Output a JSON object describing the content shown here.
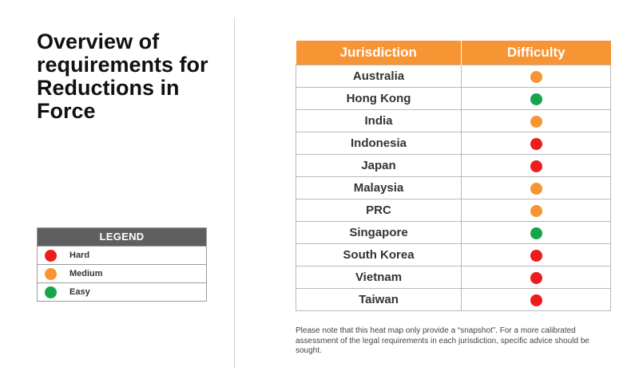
{
  "title": "Overview of requirements for Reductions in Force",
  "legend": {
    "heading": "LEGEND",
    "items": [
      {
        "label": "Hard",
        "color": "#ee1c1c"
      },
      {
        "label": "Medium",
        "color": "#f79433"
      },
      {
        "label": "Easy",
        "color": "#16a64a"
      }
    ]
  },
  "table": {
    "header_jurisdiction": "Jurisdiction",
    "header_difficulty": "Difficulty",
    "rows": [
      {
        "jurisdiction": "Australia",
        "difficulty": "Medium",
        "color": "#f79433"
      },
      {
        "jurisdiction": "Hong Kong",
        "difficulty": "Easy",
        "color": "#16a64a"
      },
      {
        "jurisdiction": "India",
        "difficulty": "Medium",
        "color": "#f79433"
      },
      {
        "jurisdiction": "Indonesia",
        "difficulty": "Hard",
        "color": "#ee1c1c"
      },
      {
        "jurisdiction": "Japan",
        "difficulty": "Hard",
        "color": "#ee1c1c"
      },
      {
        "jurisdiction": "Malaysia",
        "difficulty": "Medium",
        "color": "#f79433"
      },
      {
        "jurisdiction": "PRC",
        "difficulty": "Medium",
        "color": "#f79433"
      },
      {
        "jurisdiction": "Singapore",
        "difficulty": "Easy",
        "color": "#16a64a"
      },
      {
        "jurisdiction": "South Korea",
        "difficulty": "Hard",
        "color": "#ee1c1c"
      },
      {
        "jurisdiction": "Vietnam",
        "difficulty": "Hard",
        "color": "#ee1c1c"
      },
      {
        "jurisdiction": "Taiwan",
        "difficulty": "Hard",
        "color": "#ee1c1c"
      }
    ]
  },
  "note": "Please note that this heat map only provide a “snapshot”. For a more calibrated assessment of the legal requirements in each jurisdiction, specific advice should be sought."
}
